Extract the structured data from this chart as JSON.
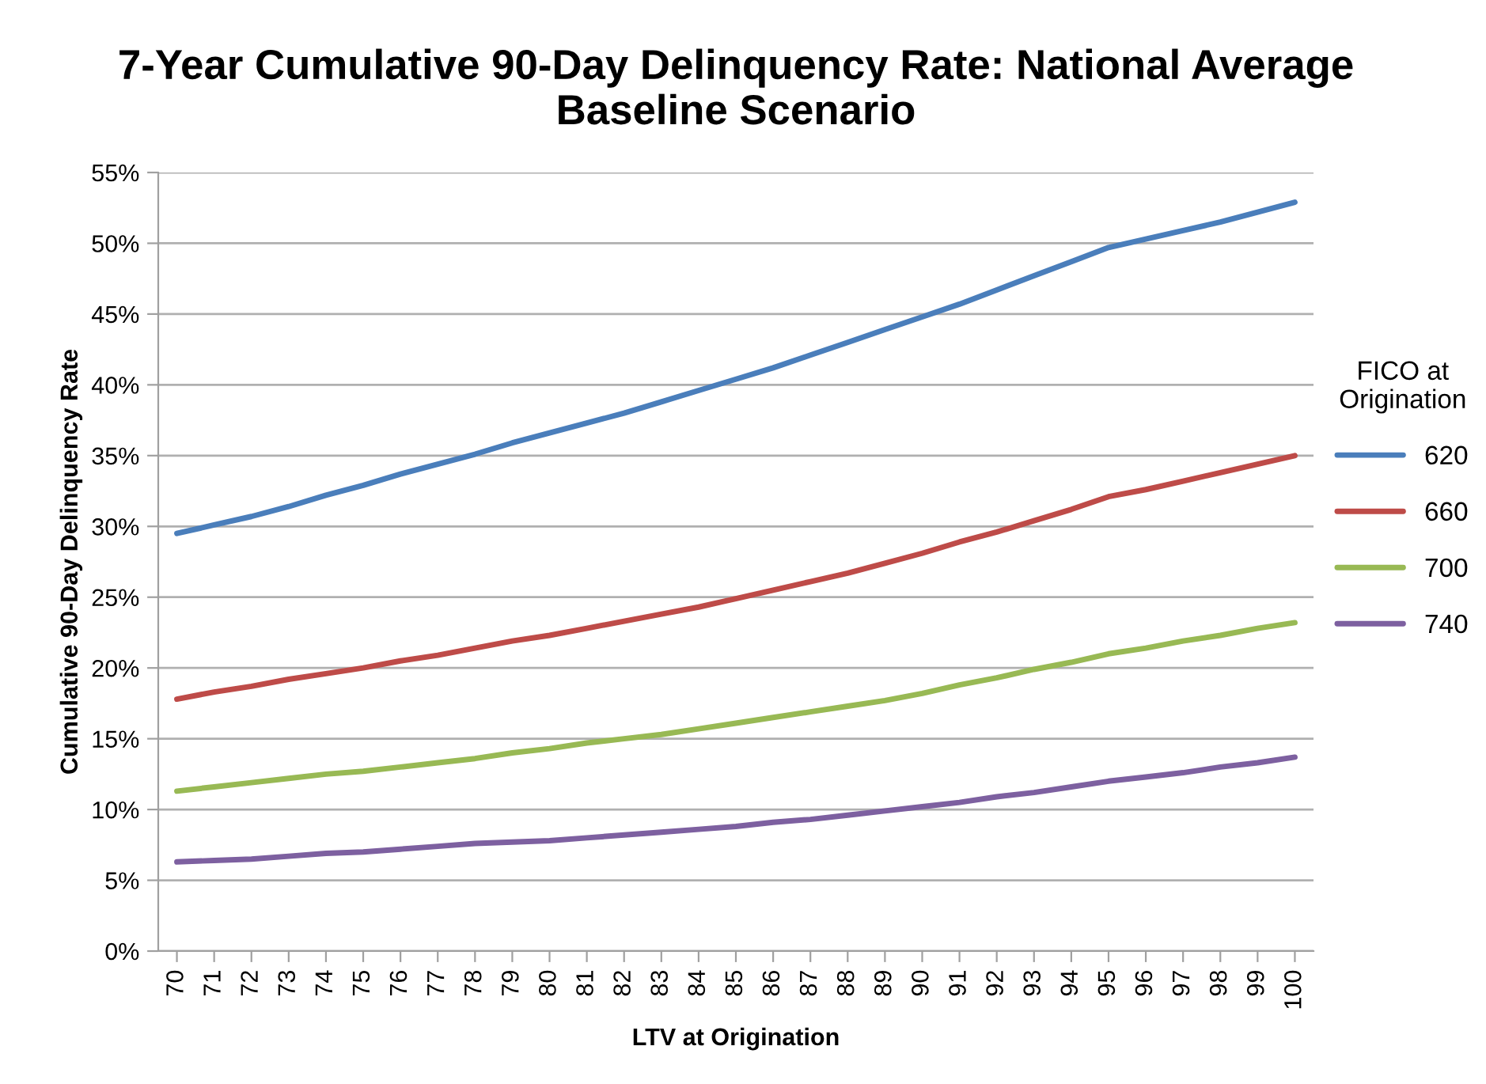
{
  "chart_data": {
    "type": "line",
    "title": "7-Year Cumulative 90-Day Delinquency Rate: National Average\nBaseline Scenario",
    "xlabel": "LTV at Origination",
    "ylabel": "Cumulative 90-Day Delinquency Rate",
    "legend_title": "FICO at\nOrigination",
    "legend": "right",
    "categories": [
      "70",
      "71",
      "72",
      "73",
      "74",
      "75",
      "76",
      "77",
      "78",
      "79",
      "80",
      "81",
      "82",
      "83",
      "84",
      "85",
      "86",
      "87",
      "88",
      "89",
      "90",
      "91",
      "92",
      "93",
      "94",
      "95",
      "96",
      "97",
      "98",
      "99",
      "100"
    ],
    "ylim": [
      0,
      55
    ],
    "yticks": [
      {
        "value": 0,
        "label": "0%"
      },
      {
        "value": 5,
        "label": "5%"
      },
      {
        "value": 10,
        "label": "10%"
      },
      {
        "value": 15,
        "label": "15%"
      },
      {
        "value": 20,
        "label": "20%"
      },
      {
        "value": 25,
        "label": "25%"
      },
      {
        "value": 30,
        "label": "30%"
      },
      {
        "value": 35,
        "label": "35%"
      },
      {
        "value": 40,
        "label": "40%"
      },
      {
        "value": 45,
        "label": "45%"
      },
      {
        "value": 50,
        "label": "50%"
      },
      {
        "value": 55,
        "label": "55%"
      }
    ],
    "grid": "y",
    "marker": "none",
    "line_style": "solid",
    "series": [
      {
        "name": "620",
        "color": "#4a7ebb",
        "values": [
          29.5,
          30.1,
          30.7,
          31.4,
          32.2,
          32.9,
          33.7,
          34.4,
          35.1,
          35.9,
          36.6,
          37.3,
          38.0,
          38.8,
          39.6,
          40.4,
          41.2,
          42.1,
          43.0,
          43.9,
          44.8,
          45.7,
          46.7,
          47.7,
          48.7,
          49.7,
          50.3,
          50.9,
          51.5,
          52.2,
          52.9
        ]
      },
      {
        "name": "660",
        "color": "#be4b48",
        "values": [
          17.8,
          18.3,
          18.7,
          19.2,
          19.6,
          20.0,
          20.5,
          20.9,
          21.4,
          21.9,
          22.3,
          22.8,
          23.3,
          23.8,
          24.3,
          24.9,
          25.5,
          26.1,
          26.7,
          27.4,
          28.1,
          28.9,
          29.6,
          30.4,
          31.2,
          32.1,
          32.6,
          33.2,
          33.8,
          34.4,
          35.0
        ]
      },
      {
        "name": "700",
        "color": "#98b954",
        "values": [
          11.3,
          11.6,
          11.9,
          12.2,
          12.5,
          12.7,
          13.0,
          13.3,
          13.6,
          14.0,
          14.3,
          14.7,
          15.0,
          15.3,
          15.7,
          16.1,
          16.5,
          16.9,
          17.3,
          17.7,
          18.2,
          18.8,
          19.3,
          19.9,
          20.4,
          21.0,
          21.4,
          21.9,
          22.3,
          22.8,
          23.2
        ]
      },
      {
        "name": "740",
        "color": "#7d60a0",
        "values": [
          6.3,
          6.4,
          6.5,
          6.7,
          6.9,
          7.0,
          7.2,
          7.4,
          7.6,
          7.7,
          7.8,
          8.0,
          8.2,
          8.4,
          8.6,
          8.8,
          9.1,
          9.3,
          9.6,
          9.9,
          10.2,
          10.5,
          10.9,
          11.2,
          11.6,
          12.0,
          12.3,
          12.6,
          13.0,
          13.3,
          13.7
        ]
      }
    ]
  }
}
